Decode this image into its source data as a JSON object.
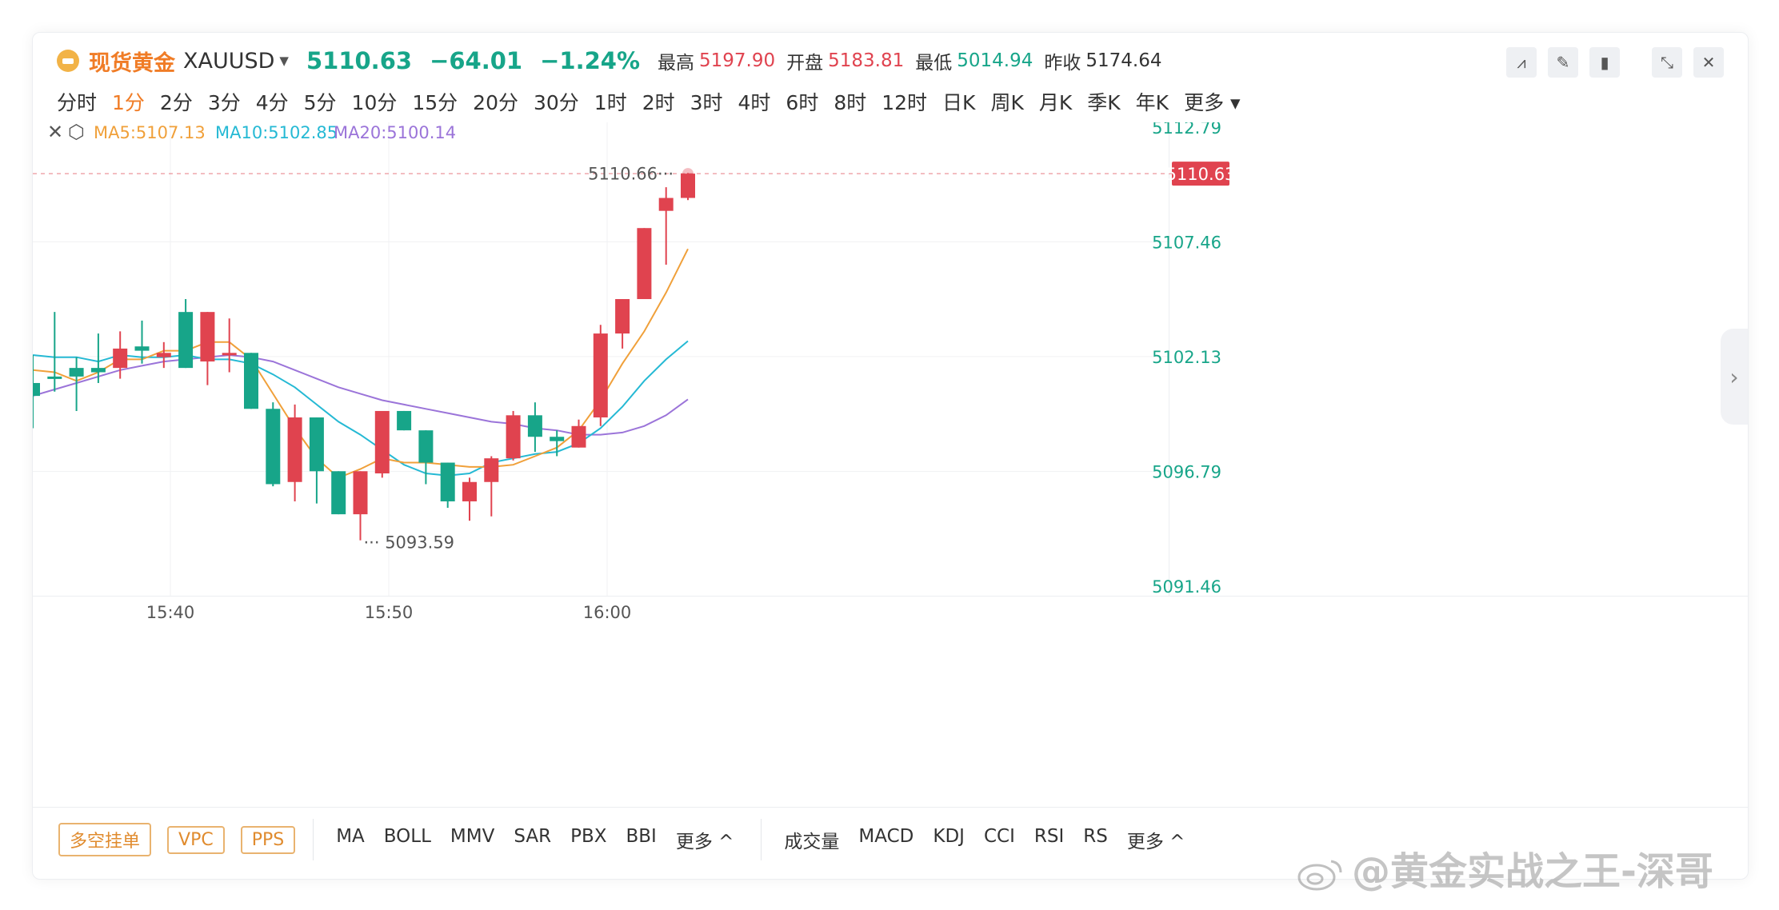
{
  "header": {
    "name": "现货黄金",
    "symbol": "XAUUSD",
    "price": "5110.63",
    "change": "−64.01",
    "change_pct": "−1.24%",
    "high_label": "最高",
    "high": "5197.90",
    "open_label": "开盘",
    "open": "5183.81",
    "low_label": "最低",
    "low": "5014.94",
    "prev_label": "昨收",
    "prev": "5174.64"
  },
  "periods": [
    "分时",
    "1分",
    "2分",
    "3分",
    "4分",
    "5分",
    "10分",
    "15分",
    "20分",
    "30分",
    "1时",
    "2时",
    "3时",
    "4时",
    "6时",
    "8时",
    "12时",
    "日K",
    "周K",
    "月K",
    "季K",
    "年K",
    "更多"
  ],
  "active_period": "1分",
  "ma": {
    "ma5": "MA5:5107.13",
    "ma10": "MA10:5102.85",
    "ma20": "MA20:5100.14"
  },
  "colors": {
    "up": "#e0434f",
    "down": "#17a589",
    "ma5": "#f0a03a",
    "ma10": "#25b9d4",
    "ma20": "#9b74d9",
    "accent": "#f07c26"
  },
  "bottom": {
    "buttons": [
      "多空挂单",
      "VPC",
      "PPS"
    ],
    "main_indicators": [
      "MA",
      "BOLL",
      "MMV",
      "SAR",
      "PBX",
      "BBI",
      "更多 ^"
    ],
    "sub_indicators": [
      "成交量",
      "MACD",
      "KDJ",
      "CCI",
      "RSI",
      "RS",
      "更多 ^"
    ]
  },
  "watermark": "@黄金实战之王-深哥",
  "chart_data": {
    "type": "candlestick",
    "y_ticks": [
      "5112.79",
      "5107.46",
      "5102.13",
      "5096.79",
      "5091.46"
    ],
    "y_range": [
      5091.46,
      5112.79
    ],
    "x_ticks": [
      "15:40",
      "15:50",
      "16:00"
    ],
    "current_price_label": "5110.63",
    "max_label": "5110.66",
    "min_label": "5093.59",
    "candles": [
      {
        "o": 5100.9,
        "c": 5100.3,
        "h": 5102.2,
        "l": 5098.8
      },
      {
        "o": 5101.2,
        "c": 5101.1,
        "h": 5104.2,
        "l": 5100.5
      },
      {
        "o": 5101.6,
        "c": 5101.2,
        "h": 5102.1,
        "l": 5099.6
      },
      {
        "o": 5101.6,
        "c": 5101.4,
        "h": 5103.2,
        "l": 5100.9
      },
      {
        "o": 5101.6,
        "c": 5102.5,
        "h": 5103.3,
        "l": 5101.1
      },
      {
        "o": 5102.6,
        "c": 5102.4,
        "h": 5103.8,
        "l": 5101.8
      },
      {
        "o": 5102.1,
        "c": 5102.3,
        "h": 5102.8,
        "l": 5101.6
      },
      {
        "o": 5104.2,
        "c": 5101.6,
        "h": 5104.8,
        "l": 5101.6
      },
      {
        "o": 5101.9,
        "c": 5104.2,
        "h": 5104.2,
        "l": 5100.8
      },
      {
        "o": 5102.2,
        "c": 5102.3,
        "h": 5103.9,
        "l": 5101.4
      },
      {
        "o": 5102.3,
        "c": 5099.7,
        "h": 5102.3,
        "l": 5099.7
      },
      {
        "o": 5099.7,
        "c": 5096.2,
        "h": 5100.0,
        "l": 5096.1
      },
      {
        "o": 5096.3,
        "c": 5099.3,
        "h": 5099.9,
        "l": 5095.4
      },
      {
        "o": 5099.3,
        "c": 5096.8,
        "h": 5099.3,
        "l": 5095.3
      },
      {
        "o": 5096.8,
        "c": 5094.8,
        "h": 5096.8,
        "l": 5094.8
      },
      {
        "o": 5094.8,
        "c": 5096.8,
        "h": 5096.8,
        "l": 5093.59
      },
      {
        "o": 5096.7,
        "c": 5099.6,
        "h": 5099.6,
        "l": 5096.5
      },
      {
        "o": 5099.6,
        "c": 5098.7,
        "h": 5099.6,
        "l": 5098.7
      },
      {
        "o": 5098.7,
        "c": 5097.2,
        "h": 5098.7,
        "l": 5096.2
      },
      {
        "o": 5097.2,
        "c": 5095.4,
        "h": 5097.2,
        "l": 5095.1
      },
      {
        "o": 5095.4,
        "c": 5096.3,
        "h": 5096.5,
        "l": 5094.5
      },
      {
        "o": 5096.3,
        "c": 5097.4,
        "h": 5097.5,
        "l": 5094.7
      },
      {
        "o": 5097.4,
        "c": 5099.4,
        "h": 5099.6,
        "l": 5097.3
      },
      {
        "o": 5099.4,
        "c": 5098.4,
        "h": 5100.0,
        "l": 5097.7
      },
      {
        "o": 5098.4,
        "c": 5098.2,
        "h": 5098.7,
        "l": 5097.5
      },
      {
        "o": 5097.9,
        "c": 5098.9,
        "h": 5099.2,
        "l": 5097.9
      },
      {
        "o": 5099.3,
        "c": 5103.2,
        "h": 5103.6,
        "l": 5098.9
      },
      {
        "o": 5103.2,
        "c": 5104.8,
        "h": 5104.8,
        "l": 5102.5
      },
      {
        "o": 5104.8,
        "c": 5108.1,
        "h": 5108.1,
        "l": 5104.8
      },
      {
        "o": 5108.9,
        "c": 5109.5,
        "h": 5110.0,
        "l": 5106.4
      },
      {
        "o": 5109.5,
        "c": 5110.63,
        "h": 5110.66,
        "l": 5109.4
      }
    ],
    "ma5": [
      5101.5,
      5101.4,
      5101.0,
      5101.4,
      5102.0,
      5102.0,
      5102.4,
      5102.4,
      5102.8,
      5102.8,
      5102.0,
      5100.4,
      5098.8,
      5097.4,
      5096.5,
      5096.9,
      5097.4,
      5097.2,
      5097.2,
      5097.1,
      5097.0,
      5097.0,
      5097.1,
      5097.5,
      5097.9,
      5098.7,
      5100.1,
      5101.8,
      5103.3,
      5105.1,
      5107.13
    ],
    "ma10": [
      5102.2,
      5102.1,
      5102.1,
      5101.9,
      5102.2,
      5102.1,
      5102.1,
      5102.2,
      5102.0,
      5102.0,
      5101.8,
      5101.3,
      5100.7,
      5099.9,
      5099.1,
      5098.5,
      5097.8,
      5097.1,
      5096.7,
      5096.6,
      5096.7,
      5097.2,
      5097.4,
      5097.6,
      5097.7,
      5098.1,
      5098.8,
      5099.8,
      5101.0,
      5102.0,
      5102.85
    ],
    "ma20": [
      5100.3,
      5100.6,
      5100.9,
      5101.2,
      5101.5,
      5101.7,
      5101.9,
      5102.0,
      5102.1,
      5102.2,
      5102.1,
      5101.9,
      5101.5,
      5101.1,
      5100.7,
      5100.4,
      5100.1,
      5099.9,
      5099.7,
      5099.5,
      5099.3,
      5099.1,
      5099.0,
      5098.8,
      5098.7,
      5098.5,
      5098.5,
      5098.6,
      5098.9,
      5099.4,
      5100.14
    ]
  }
}
